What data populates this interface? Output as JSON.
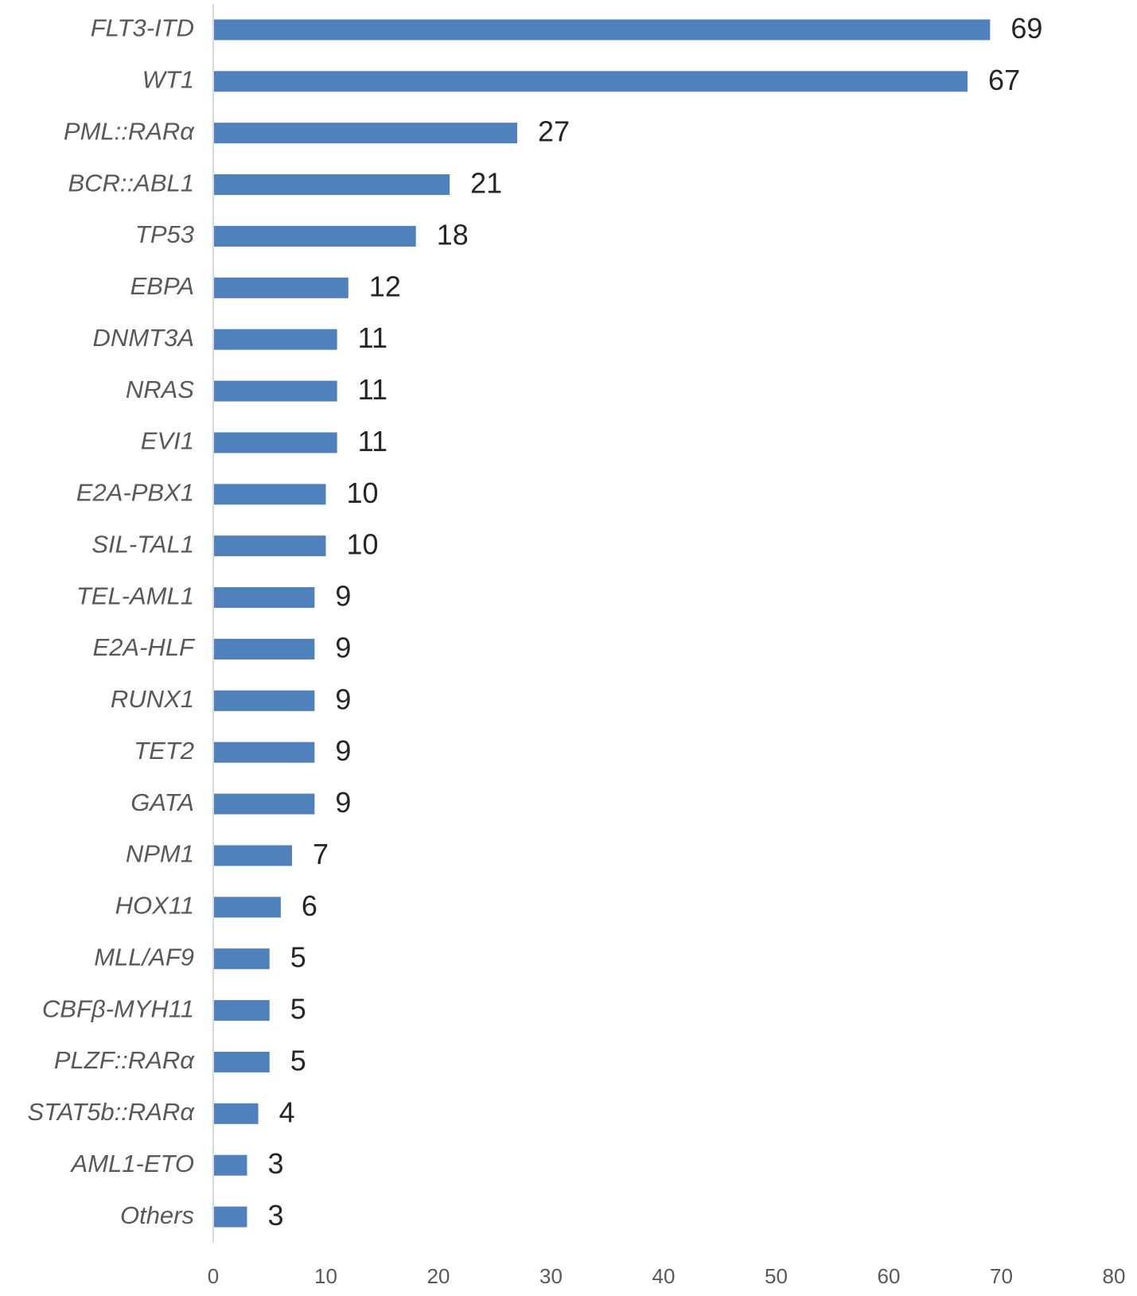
{
  "chart_data": {
    "type": "bar",
    "orientation": "horizontal",
    "categories": [
      "FLT3-ITD",
      "WT1",
      "PML::RARα",
      "BCR::ABL1",
      "TP53",
      "EBPA",
      "DNMT3A",
      "NRAS",
      "EVI1",
      "E2A-PBX1",
      "SIL-TAL1",
      "TEL-AML1",
      "E2A-HLF",
      "RUNX1",
      "TET2",
      "GATA",
      "NPM1",
      "HOX11",
      "MLL/AF9",
      "CBFβ-MYH11",
      "PLZF::RARα",
      "STAT5b::RARα",
      "AML1-ETO",
      "Others"
    ],
    "values": [
      69,
      67,
      27,
      21,
      18,
      12,
      11,
      11,
      11,
      10,
      10,
      9,
      9,
      9,
      9,
      9,
      7,
      6,
      5,
      5,
      5,
      4,
      3,
      3
    ],
    "color": "#4f81bd",
    "xlim": [
      0,
      80
    ],
    "xticks": [
      0,
      10,
      20,
      30,
      40,
      50,
      60,
      70,
      80
    ],
    "grid": false
  }
}
